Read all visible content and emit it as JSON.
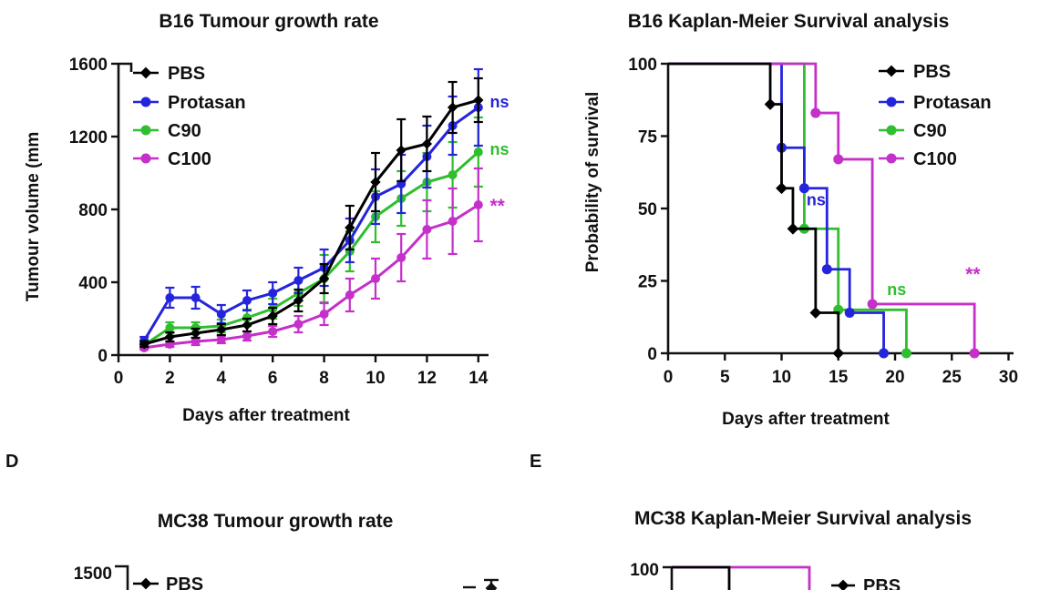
{
  "panels": {
    "d_label": "D",
    "e_label": "E"
  },
  "colors": {
    "pbs": "#000000",
    "protasan": "#2424DC",
    "c90": "#2EBE2E",
    "c100": "#C430C9",
    "text": "#111111"
  },
  "chart_data": [
    {
      "id": "b16_growth",
      "type": "line",
      "title": "B16 Tumour growth rate",
      "xlabel": "Days after treatment",
      "ylabel": "Tumour volume (mm",
      "xlim": [
        0,
        14.7
      ],
      "ylim": [
        0,
        1600
      ],
      "xticks": [
        0,
        2,
        4,
        6,
        8,
        10,
        12,
        14
      ],
      "yticks": [
        0,
        400,
        800,
        1200,
        1600
      ],
      "grid": false,
      "legend_position": "top-left-inside",
      "x": [
        1,
        2,
        3,
        4,
        5,
        6,
        7,
        8,
        9,
        10,
        11,
        12,
        13,
        14
      ],
      "series": [
        {
          "name": "PBS",
          "color": "pbs",
          "shape": "diamond",
          "values": [
            60,
            100,
            120,
            140,
            165,
            215,
            300,
            420,
            700,
            950,
            1125,
            1160,
            1360,
            1400
          ],
          "errors": [
            15,
            25,
            25,
            30,
            35,
            45,
            60,
            80,
            120,
            160,
            170,
            150,
            140,
            120
          ]
        },
        {
          "name": "Protasan",
          "color": "protasan",
          "shape": "circle",
          "values": [
            80,
            315,
            315,
            225,
            300,
            340,
            410,
            480,
            630,
            870,
            940,
            1090,
            1260,
            1360
          ],
          "errors": [
            20,
            55,
            60,
            50,
            55,
            60,
            70,
            100,
            120,
            150,
            160,
            170,
            160,
            210
          ]
        },
        {
          "name": "C90",
          "color": "c90",
          "shape": "circle",
          "values": [
            55,
            150,
            150,
            160,
            205,
            255,
            340,
            420,
            570,
            760,
            860,
            950,
            990,
            1115
          ],
          "errors": [
            15,
            30,
            30,
            35,
            45,
            55,
            70,
            130,
            110,
            140,
            150,
            160,
            180,
            190
          ]
        },
        {
          "name": "C100",
          "color": "c100",
          "shape": "circle",
          "values": [
            40,
            60,
            75,
            85,
            105,
            130,
            170,
            225,
            330,
            420,
            535,
            690,
            735,
            825
          ],
          "errors": [
            10,
            15,
            20,
            20,
            25,
            30,
            45,
            60,
            90,
            110,
            130,
            160,
            180,
            200
          ]
        }
      ],
      "annotations": [
        {
          "text": "ns",
          "color": "protasan",
          "day": 14.45,
          "value": 1390
        },
        {
          "text": "ns",
          "color": "c90",
          "day": 14.45,
          "value": 1130
        },
        {
          "text": "**",
          "color": "c100",
          "day": 14.45,
          "value": 815
        }
      ]
    },
    {
      "id": "b16_km",
      "type": "step",
      "title": "B16 Kaplan-Meier Survival analysis",
      "xlabel": "Days after treatment",
      "ylabel": "Probability of survival",
      "xlim": [
        0,
        30
      ],
      "ylim": [
        0,
        100
      ],
      "xticks": [
        0,
        5,
        10,
        15,
        20,
        25,
        30
      ],
      "yticks": [
        0,
        25,
        50,
        75,
        100
      ],
      "grid": false,
      "legend_position": "top-right-inside",
      "series": [
        {
          "name": "PBS",
          "color": "pbs",
          "shape": "diamond",
          "points": [
            [
              0,
              100
            ],
            [
              9,
              100
            ],
            [
              9,
              86
            ],
            [
              10,
              86
            ],
            [
              10,
              57
            ],
            [
              11,
              57
            ],
            [
              11,
              43
            ],
            [
              13,
              43
            ],
            [
              13,
              14
            ],
            [
              15,
              14
            ],
            [
              15,
              0
            ]
          ]
        },
        {
          "name": "Protasan",
          "color": "protasan",
          "shape": "circle",
          "points": [
            [
              0,
              100
            ],
            [
              10,
              100
            ],
            [
              10,
              71
            ],
            [
              12,
              71
            ],
            [
              12,
              57
            ],
            [
              14,
              57
            ],
            [
              14,
              29
            ],
            [
              16,
              29
            ],
            [
              16,
              14
            ],
            [
              19,
              14
            ],
            [
              19,
              0
            ]
          ]
        },
        {
          "name": "C90",
          "color": "c90",
          "shape": "circle",
          "points": [
            [
              0,
              100
            ],
            [
              12,
              100
            ],
            [
              12,
              43
            ],
            [
              15,
              43
            ],
            [
              15,
              15
            ],
            [
              21,
              15
            ],
            [
              21,
              0
            ]
          ]
        },
        {
          "name": "C100",
          "color": "c100",
          "shape": "circle",
          "points": [
            [
              0,
              100
            ],
            [
              13,
              100
            ],
            [
              13,
              83
            ],
            [
              15,
              83
            ],
            [
              15,
              67
            ],
            [
              18,
              67
            ],
            [
              18,
              17
            ],
            [
              27,
              17
            ],
            [
              27,
              0
            ]
          ]
        }
      ],
      "annotations": [
        {
          "text": "ns",
          "color": "protasan",
          "day": 12.2,
          "pct": 53
        },
        {
          "text": "ns",
          "color": "c90",
          "day": 19.3,
          "pct": 22
        },
        {
          "text": "**",
          "color": "c100",
          "day": 26.2,
          "pct": 27
        }
      ]
    },
    {
      "id": "mc38_growth",
      "type": "line",
      "partial": true,
      "title": "MC38 Tumour growth rate",
      "visible_yticks": [
        "1500"
      ],
      "legend_visible": [
        {
          "name": "PBS",
          "color": "pbs"
        }
      ]
    },
    {
      "id": "mc38_km",
      "type": "step",
      "partial": true,
      "title": "MC38 Kaplan-Meier Survival analysis",
      "visible_yticks": [
        "100"
      ],
      "legend_visible": [
        {
          "name": "PBS",
          "color": "pbs"
        }
      ],
      "visible_series_colors": [
        "pbs",
        "c100"
      ]
    }
  ]
}
